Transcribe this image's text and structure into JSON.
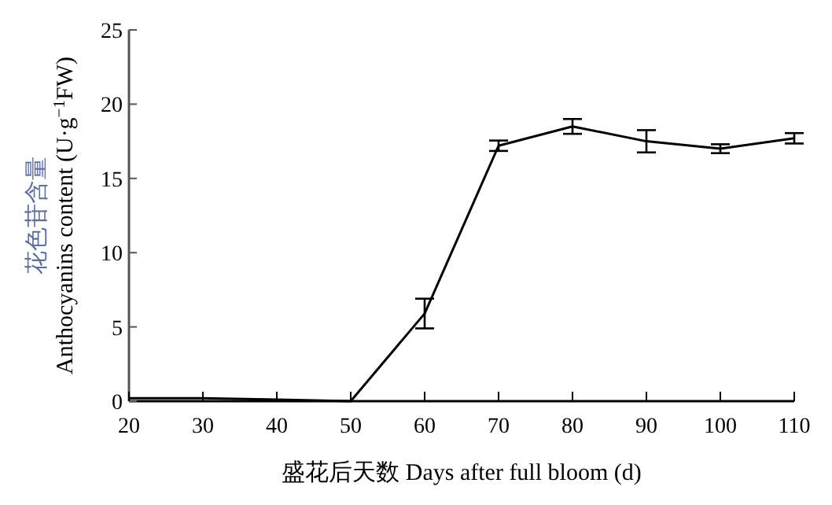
{
  "chart_data": {
    "type": "line",
    "xlabel": "盛花后天数 Days after full bloom (d)",
    "ylabel": "花色苷含量\nAnthocyanins content (U·g$^{−1}$FW)",
    "x": [
      20,
      30,
      40,
      50,
      60,
      70,
      80,
      90,
      100,
      110
    ],
    "series": [
      {
        "color": "#000000",
        "values": [
          0.2,
          0.2,
          0.1,
          0,
          5.9,
          17.2,
          18.5,
          17.5,
          17.0,
          17.7
        ],
        "errors": [
          null,
          null,
          null,
          null,
          1.0,
          0.35,
          0.5,
          0.75,
          0.3,
          0.35
        ]
      }
    ],
    "xlim": [
      20,
      110
    ],
    "xticks": [
      20,
      30,
      40,
      50,
      60,
      70,
      80,
      90,
      100,
      110
    ],
    "ylim": [
      0,
      25
    ],
    "yticks": [
      0,
      5,
      10,
      15,
      20,
      25
    ],
    "grid": false
  }
}
